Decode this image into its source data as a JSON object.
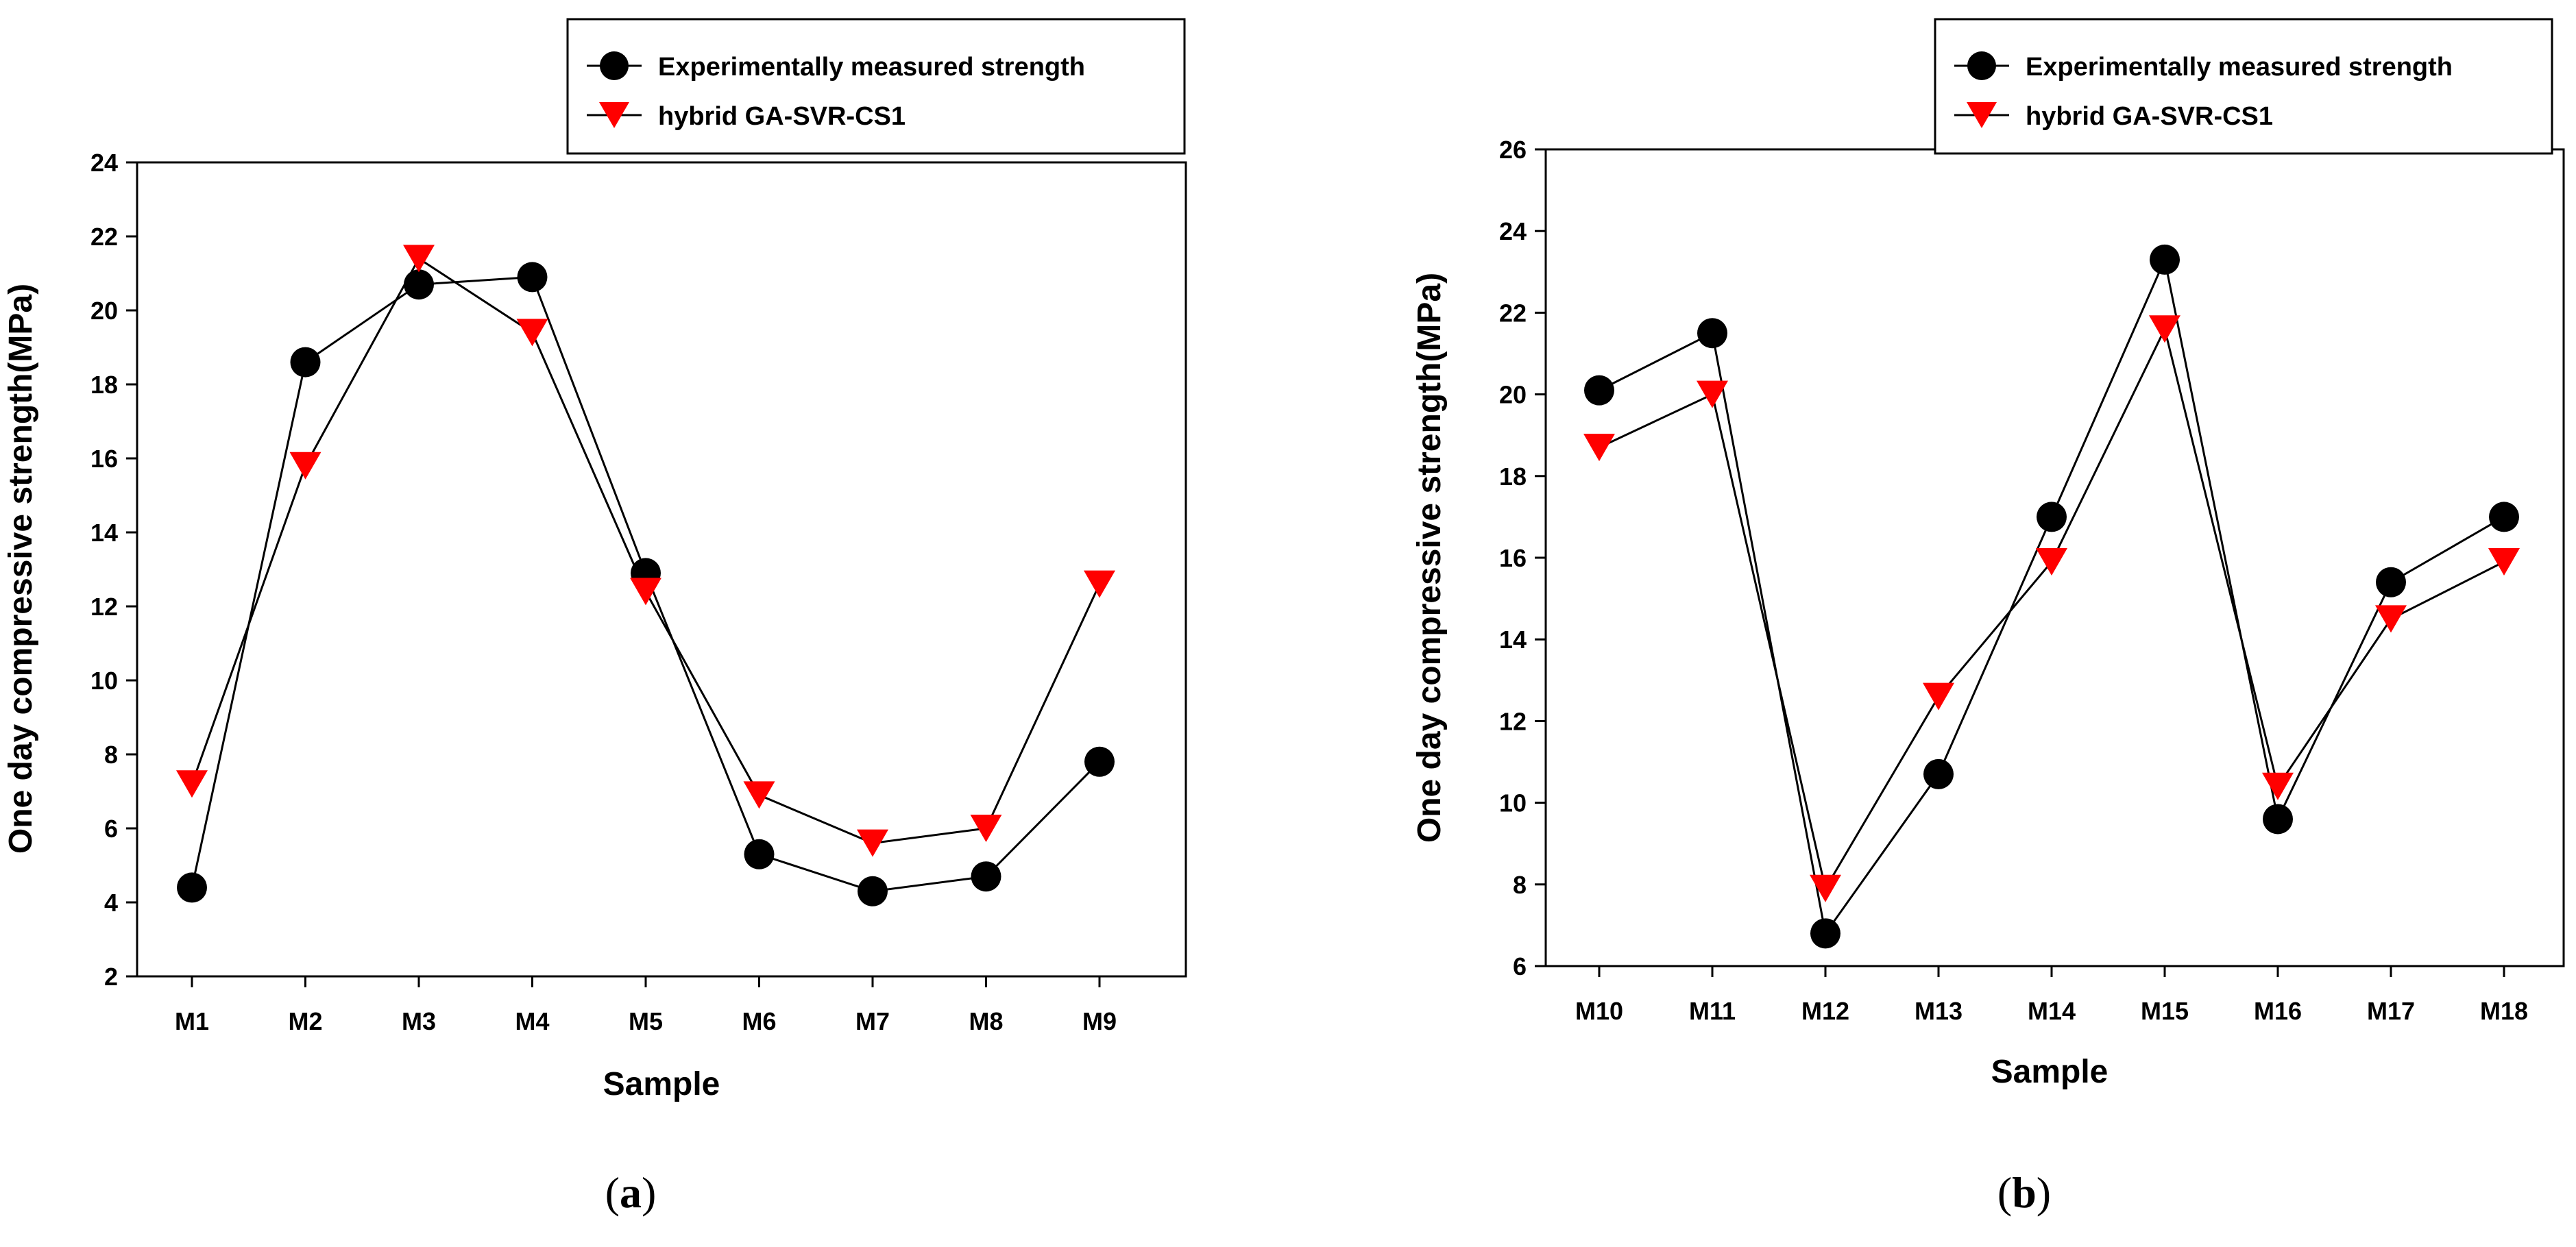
{
  "chart_data": [
    {
      "type": "line",
      "panel_label": "a",
      "title": "",
      "xlabel": "Sample",
      "ylabel": "One day compressive strength(MPa)",
      "ylim": [
        2,
        24
      ],
      "yticks": [
        2,
        4,
        6,
        8,
        10,
        12,
        14,
        16,
        18,
        20,
        22,
        24
      ],
      "grid": false,
      "legend_position": "top-right, outside plot",
      "categories": [
        "M1",
        "M2",
        "M3",
        "M4",
        "M5",
        "M6",
        "M7",
        "M8",
        "M9"
      ],
      "series": [
        {
          "name": "Experimentally measured strength",
          "marker": "circle",
          "color": "#000000",
          "values": [
            4.4,
            18.6,
            20.7,
            20.9,
            12.9,
            5.3,
            4.3,
            4.7,
            7.8
          ]
        },
        {
          "name": "hybrid GA-SVR-CS1",
          "marker": "triangle-down",
          "color": "#ff0000",
          "values": [
            7.2,
            15.8,
            21.4,
            19.4,
            12.4,
            6.9,
            5.6,
            6.0,
            12.6
          ]
        }
      ]
    },
    {
      "type": "line",
      "panel_label": "b",
      "title": "",
      "xlabel": "Sample",
      "ylabel": "One day compressive strength(MPa)",
      "ylim": [
        6,
        26
      ],
      "yticks": [
        6,
        8,
        10,
        12,
        14,
        16,
        18,
        20,
        22,
        24,
        26
      ],
      "grid": false,
      "legend_position": "top-right, outside plot",
      "categories": [
        "M10",
        "M11",
        "M12",
        "M13",
        "M14",
        "M15",
        "M16",
        "M17",
        "M18"
      ],
      "series": [
        {
          "name": "Experimentally measured strength",
          "marker": "circle",
          "color": "#000000",
          "values": [
            20.1,
            21.5,
            6.8,
            10.7,
            17.0,
            23.3,
            9.6,
            15.4,
            17.0
          ]
        },
        {
          "name": "hybrid GA-SVR-CS1",
          "marker": "triangle-down",
          "color": "#ff0000",
          "values": [
            18.7,
            20.0,
            7.9,
            12.6,
            15.9,
            21.6,
            10.4,
            14.5,
            15.9
          ]
        }
      ]
    }
  ]
}
